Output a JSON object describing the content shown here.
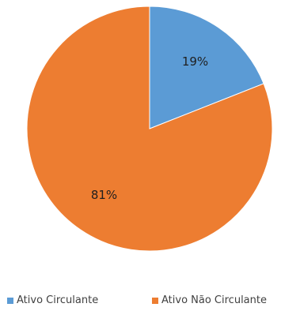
{
  "chart_data": {
    "type": "pie",
    "categories": [
      "Ativo Circulante",
      "Ativo Não Circulante"
    ],
    "values": [
      19,
      81
    ],
    "data_labels": [
      "19%",
      "81%"
    ],
    "colors": [
      "#5b9bd5",
      "#ed7d31"
    ],
    "title": "",
    "start_angle_deg": 0,
    "direction": "clockwise",
    "legend": {
      "placement": "bottom",
      "entries": [
        "Ativo Circulante",
        "Ativo Não Circulante"
      ]
    }
  }
}
